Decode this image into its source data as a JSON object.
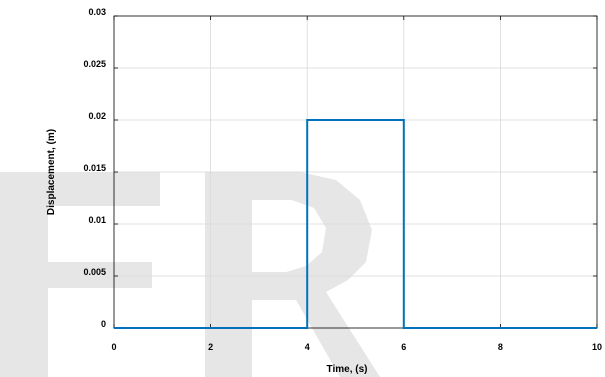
{
  "chart_data": {
    "type": "line",
    "xlabel": "Time,  (s)",
    "ylabel": "Displacement,  (m)",
    "xlim": [
      0,
      10
    ],
    "ylim": [
      0,
      0.03
    ],
    "xticks": [
      "0",
      "2",
      "4",
      "6",
      "8",
      "10"
    ],
    "yticks": [
      "0",
      "0.005",
      "0.01",
      "0.015",
      "0.02",
      "0.025",
      "0.03"
    ],
    "grid": true,
    "series": [
      {
        "x": [
          0,
          4,
          4,
          6,
          6,
          10
        ],
        "y": [
          0,
          0,
          0.02,
          0.02,
          0,
          0
        ],
        "color": "#0072bd"
      }
    ],
    "watermark": {
      "text": "ER",
      "color": "#e6e6e6"
    }
  }
}
